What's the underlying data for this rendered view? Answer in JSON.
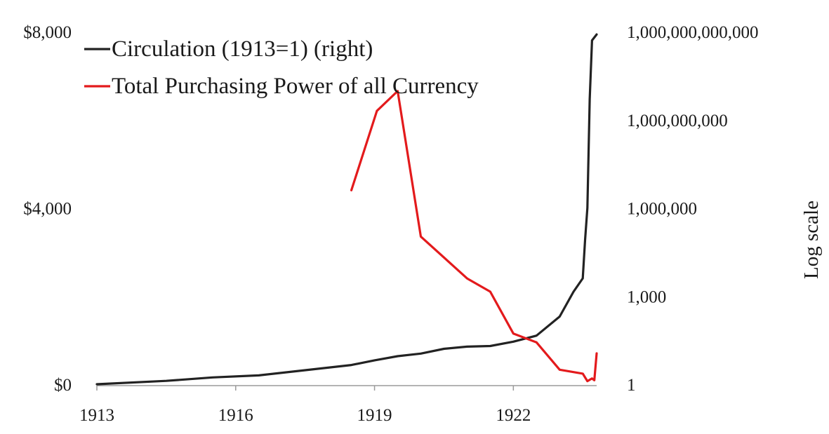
{
  "chart_data": {
    "type": "line",
    "title": "",
    "legend_position": "top-left",
    "x_axis": {
      "min": 1913,
      "max": 1923.8,
      "ticks": [
        1913,
        1916,
        1919,
        1922
      ],
      "tick_labels": [
        "1913",
        "1916",
        "1919",
        "1922"
      ]
    },
    "left_axis": {
      "min": 0,
      "max": 8000,
      "ticks": [
        0,
        4000,
        8000
      ],
      "tick_labels": [
        "$0",
        "$4,000",
        "$8,000"
      ]
    },
    "right_axis": {
      "scale": "log",
      "label": "Log scale",
      "min_exponent": 0,
      "max_exponent": 12,
      "tick_exponents": [
        0,
        3,
        6,
        9,
        12
      ],
      "tick_labels": [
        "1",
        "1,000",
        "1,000,000",
        "1,000,000,000",
        "1,000,000,000,000"
      ]
    },
    "series": [
      {
        "name": "Circulation (1913=1) (right)",
        "axis": "right",
        "color": "#222222",
        "x": [
          1913,
          1914.5,
          1915.5,
          1916.5,
          1917.5,
          1918.5,
          1919,
          1919.5,
          1920,
          1920.5,
          1921,
          1921.5,
          1922,
          1922.5,
          1923,
          1923.3,
          1923.5,
          1923.55,
          1923.6,
          1923.65,
          1923.7,
          1923.8
        ],
        "values": [
          1,
          1.3,
          1.7,
          2,
          3,
          4.5,
          6.5,
          9,
          11,
          16,
          19,
          20,
          28,
          45,
          200,
          1400,
          4000,
          80000,
          1000000,
          5000000000,
          500000000000,
          800000000000
        ]
      },
      {
        "name": "Total Purchasing Power of all Currency",
        "axis": "left",
        "color": "#e31a1c",
        "x": [
          1918.5,
          1919.05,
          1919.5,
          1920,
          1921,
          1921.5,
          1922,
          1922.5,
          1923,
          1923.5,
          1923.6,
          1923.7,
          1923.75,
          1923.8
        ],
        "values": [
          4400,
          6200,
          6650,
          3350,
          2400,
          2100,
          1150,
          950,
          330,
          240,
          70,
          130,
          90,
          700
        ]
      }
    ]
  }
}
